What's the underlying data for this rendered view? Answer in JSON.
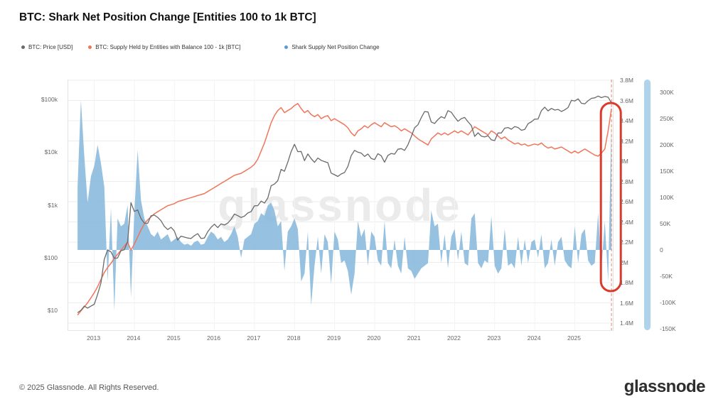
{
  "page": {
    "title": "BTC: Shark Net Position Change [Entities 100 to 1k BTC]",
    "watermark": "glassnode",
    "footer_copyright": "© 2025 Glassnode. All Rights Reserved.",
    "footer_logo": "glassnode"
  },
  "legend": {
    "items": [
      {
        "label": "BTC: Price [USD]",
        "color": "#6a6a6a"
      },
      {
        "label": "BTC: Supply Held by Entities with Balance 100 - 1k [BTC]",
        "color": "#f0765b"
      },
      {
        "label": "Shark Supply Net Position Change",
        "color": "#5b9bd1"
      }
    ]
  },
  "chart_data": {
    "type": "mixed",
    "title": "BTC: Shark Net Position Change [Entities 100 to 1k BTC]",
    "x_start": 2012.583,
    "x_step_years": 0.083333,
    "x_domain": [
      2012.35,
      2025.95
    ],
    "axes": {
      "x_ticks": [
        2013,
        2014,
        2015,
        2016,
        2017,
        2018,
        2019,
        2020,
        2021,
        2022,
        2023,
        2024,
        2025
      ],
      "price": {
        "scale": "log",
        "labels": [
          "$100k",
          "$10k",
          "$1k",
          "$100",
          "$10"
        ],
        "values": [
          100000,
          10000,
          1000,
          100,
          10
        ]
      },
      "supply": {
        "range": [
          1.4,
          3.8
        ],
        "labels": [
          "3.8M",
          "3.6M",
          "3.4M",
          "3.2M",
          "3M",
          "2.8M",
          "2.6M",
          "2.4M",
          "2.2M",
          "2M",
          "1.8M",
          "1.6M",
          "1.4M"
        ],
        "values": [
          3.8,
          3.6,
          3.4,
          3.2,
          3.0,
          2.8,
          2.6,
          2.4,
          2.2,
          2.0,
          1.8,
          1.6,
          1.4
        ]
      },
      "net": {
        "range": [
          -150,
          300
        ],
        "labels": [
          "300K",
          "250K",
          "200K",
          "150K",
          "100K",
          "50K",
          "0",
          "-50K",
          "-100K",
          "-150K"
        ],
        "values": [
          300,
          250,
          200,
          150,
          100,
          50,
          0,
          -50,
          -100,
          -150
        ]
      }
    },
    "series": [
      {
        "name": "BTC: Price [USD]",
        "type": "line",
        "axis": "price_log_usd",
        "color": "#6a6a6a",
        "values": [
          9,
          10,
          12,
          11,
          12,
          13,
          20,
          33,
          93,
          140,
          128,
          97,
          98,
          135,
          141,
          200,
          1100,
          750,
          800,
          550,
          450,
          445,
          620,
          640,
          580,
          500,
          390,
          340,
          375,
          320,
          215,
          255,
          245,
          235,
          230,
          260,
          285,
          230,
          235,
          310,
          375,
          430,
          370,
          435,
          415,
          450,
          530,
          670,
          625,
          575,
          610,
          700,
          745,
          960,
          965,
          1180,
          1080,
          1350,
          2300,
          2480,
          2870,
          4700,
          4340,
          6450,
          10200,
          14100,
          10200,
          10300,
          6900,
          9250,
          7500,
          6400,
          7750,
          7000,
          6600,
          6300,
          4000,
          3740,
          3460,
          3850,
          4100,
          5350,
          8580,
          10800,
          10000,
          9600,
          8300,
          9200,
          7550,
          7200,
          9350,
          8550,
          6450,
          8650,
          9450,
          9140,
          11350,
          11650,
          10800,
          13800,
          19700,
          29000,
          33100,
          45200,
          58800,
          57750,
          37300,
          35000,
          41500,
          47100,
          43800,
          61300,
          57000,
          46200,
          38500,
          43200,
          45500,
          37650,
          31800,
          19900,
          23300,
          20050,
          19400,
          20500,
          17150,
          16550,
          23100,
          23150,
          28500,
          29250,
          27200,
          30450,
          29250,
          25950,
          26950,
          34650,
          37700,
          42250,
          42550,
          61150,
          71300,
          60600,
          67500,
          62750,
          64600,
          58950,
          63300,
          70200,
          96400,
          93400,
          102400,
          84350,
          82500,
          94200,
          104600,
          107100,
          115800,
          108200,
          114000,
          110000,
          86000
        ]
      },
      {
        "name": "BTC: Supply Held by Entities with Balance 100 - 1k [BTC]",
        "type": "line",
        "axis": "supply_m_btc",
        "color": "#f0765b",
        "values": [
          1.48,
          1.52,
          1.56,
          1.6,
          1.65,
          1.7,
          1.76,
          1.83,
          1.9,
          1.95,
          1.99,
          2.04,
          2.08,
          2.12,
          2.16,
          2.2,
          2.12,
          2.18,
          2.25,
          2.32,
          2.38,
          2.42,
          2.45,
          2.48,
          2.5,
          2.52,
          2.54,
          2.56,
          2.57,
          2.58,
          2.6,
          2.61,
          2.62,
          2.63,
          2.64,
          2.65,
          2.66,
          2.67,
          2.68,
          2.7,
          2.72,
          2.74,
          2.76,
          2.78,
          2.8,
          2.82,
          2.84,
          2.86,
          2.87,
          2.88,
          2.9,
          2.92,
          2.94,
          2.97,
          3.02,
          3.1,
          3.18,
          3.28,
          3.38,
          3.45,
          3.5,
          3.53,
          3.48,
          3.5,
          3.52,
          3.55,
          3.57,
          3.52,
          3.48,
          3.5,
          3.46,
          3.44,
          3.46,
          3.42,
          3.44,
          3.45,
          3.4,
          3.42,
          3.4,
          3.38,
          3.36,
          3.33,
          3.28,
          3.25,
          3.3,
          3.32,
          3.35,
          3.33,
          3.36,
          3.38,
          3.36,
          3.34,
          3.38,
          3.36,
          3.34,
          3.35,
          3.33,
          3.3,
          3.32,
          3.3,
          3.28,
          3.25,
          3.22,
          3.2,
          3.18,
          3.16,
          3.22,
          3.25,
          3.28,
          3.26,
          3.28,
          3.26,
          3.28,
          3.3,
          3.28,
          3.3,
          3.28,
          3.26,
          3.3,
          3.34,
          3.32,
          3.3,
          3.28,
          3.26,
          3.3,
          3.28,
          3.25,
          3.22,
          3.24,
          3.21,
          3.19,
          3.17,
          3.18,
          3.16,
          3.17,
          3.15,
          3.16,
          3.17,
          3.16,
          3.18,
          3.15,
          3.13,
          3.14,
          3.12,
          3.13,
          3.14,
          3.12,
          3.1,
          3.08,
          3.1,
          3.08,
          3.1,
          3.12,
          3.1,
          3.08,
          3.06,
          3.05,
          3.08,
          3.12,
          3.3,
          3.52
        ]
      },
      {
        "name": "Shark Supply Net Position Change",
        "type": "area",
        "axis": "net_change_k_btc",
        "color": "#84b6db",
        "values": [
          120,
          285,
          180,
          90,
          140,
          160,
          200,
          165,
          120,
          -60,
          80,
          -115,
          60,
          45,
          50,
          85,
          -90,
          70,
          190,
          95,
          60,
          45,
          30,
          25,
          35,
          20,
          25,
          30,
          15,
          20,
          25,
          15,
          10,
          12,
          8,
          15,
          18,
          10,
          12,
          25,
          35,
          30,
          20,
          25,
          15,
          20,
          30,
          45,
          25,
          -15,
          20,
          25,
          30,
          50,
          55,
          70,
          65,
          85,
          90,
          75,
          45,
          55,
          -40,
          35,
          45,
          60,
          40,
          -60,
          -45,
          35,
          -105,
          -30,
          25,
          -45,
          30,
          15,
          -65,
          35,
          20,
          -25,
          -20,
          -40,
          -85,
          -45,
          55,
          25,
          40,
          -30,
          35,
          25,
          -20,
          -30,
          55,
          -25,
          -35,
          20,
          -30,
          -45,
          25,
          -35,
          -40,
          -55,
          -45,
          -35,
          -30,
          -25,
          75,
          45,
          50,
          -25,
          30,
          -35,
          25,
          40,
          -20,
          35,
          -25,
          -30,
          60,
          70,
          -25,
          -35,
          -20,
          -25,
          65,
          -30,
          -45,
          -35,
          40,
          -30,
          -25,
          -35,
          25,
          -30,
          20,
          -25,
          15,
          20,
          -15,
          30,
          -35,
          -25,
          20,
          -30,
          15,
          25,
          -20,
          -30,
          -35,
          45,
          -25,
          30,
          40,
          -20,
          -30,
          -25,
          70,
          -35,
          55,
          -60,
          250
        ]
      }
    ],
    "annotations": {
      "current_marker_x": 2025.917,
      "highlight_ellipse": {
        "x": 2025.9,
        "color": "#d93a2b"
      }
    }
  }
}
